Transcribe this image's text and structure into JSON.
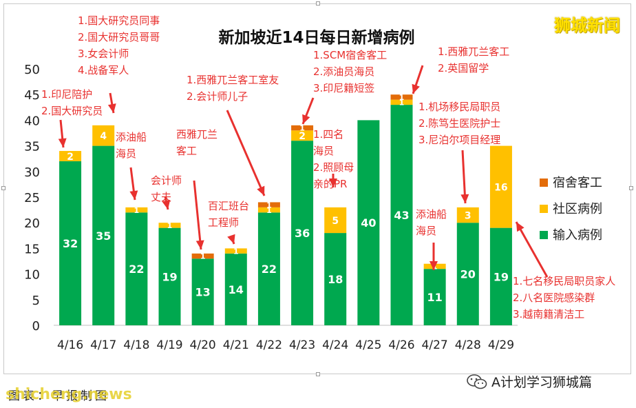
{
  "chart_data": {
    "type": "bar",
    "stacked": true,
    "title": "新加坡近14日每日新增病例",
    "categories": [
      "4/16",
      "4/17",
      "4/18",
      "4/19",
      "4/20",
      "4/21",
      "4/22",
      "4/23",
      "4/24",
      "4/25",
      "4/26",
      "4/27",
      "4/28",
      "4/29"
    ],
    "series": [
      {
        "name": "输入病例",
        "color": "#00a84f",
        "values": [
          32,
          35,
          22,
          19,
          13,
          14,
          22,
          36,
          18,
          40,
          43,
          11,
          20,
          19
        ]
      },
      {
        "name": "社区病例",
        "color": "#ffc000",
        "values": [
          2,
          4,
          1,
          1,
          0,
          1,
          1,
          2,
          5,
          0,
          1,
          1,
          3,
          16
        ]
      },
      {
        "name": "宿舍客工",
        "color": "#e36c09",
        "values": [
          0,
          0,
          0,
          0,
          1,
          0,
          1,
          1,
          0,
          0,
          1,
          0,
          0,
          0
        ]
      }
    ],
    "ylim": [
      0,
      50
    ],
    "yticks": [
      0,
      5,
      10,
      15,
      20,
      25,
      30,
      35,
      40,
      45,
      50
    ],
    "grid": false,
    "legend_position": "right",
    "annotations": [
      {
        "text": [
          "1.印尼陪护",
          "2.国大研究员"
        ]
      },
      {
        "text": [
          "1.国大研究员同事",
          "2.国大研究员哥哥",
          "3.女会计师",
          "4.战备军人"
        ]
      },
      {
        "text": [
          "添油船",
          "海员"
        ]
      },
      {
        "text": [
          "会计师",
          "丈夫"
        ]
      },
      {
        "text": [
          "西雅兀兰",
          "客工"
        ]
      },
      {
        "text": [
          "百汇班台",
          "工程师"
        ]
      },
      {
        "text": [
          "1.西雅兀兰客工室友",
          "2.会计师儿子"
        ]
      },
      {
        "text": [
          "1.SCM宿舍客工",
          "2.添油员海员",
          "3.印尼籍短签"
        ]
      },
      {
        "text": [
          "1.四名",
          "海员",
          "2.照顾母",
          "亲的PR"
        ]
      },
      {
        "text": [
          "1.西雅兀兰客工",
          "2.英国留学"
        ]
      },
      {
        "text": [
          "1.机场移民局职员",
          "2.陈笃生医院护士",
          "3.尼泊尔项目经理"
        ]
      },
      {
        "text": [
          "添油船",
          "海员"
        ]
      },
      {
        "text": [
          "1.七名移民局职员家人",
          "2.八名医院感染群",
          "3.越南籍清洁工"
        ]
      }
    ]
  },
  "brand": "狮城新闻",
  "footer": {
    "source": "图表：早报制图",
    "watermark": "shicheng.news",
    "wechat": "A计划学习狮城篇"
  },
  "colors": {
    "annotation": "#e8312f",
    "arrow": "#e8312f"
  }
}
